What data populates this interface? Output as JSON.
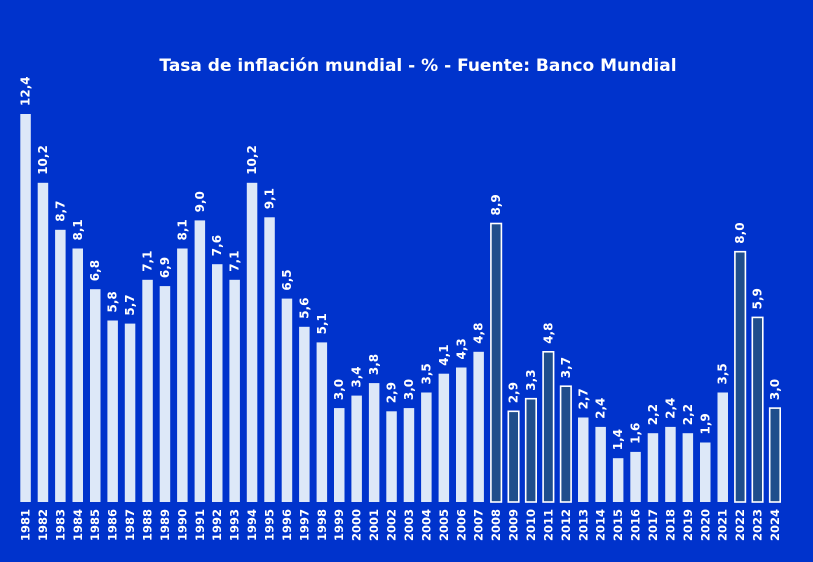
{
  "chart_data": {
    "type": "bar",
    "title": "Tasa de inflación mundial - % - Fuente: Banco Mundial",
    "xlabel": "",
    "ylabel": "",
    "ylim": [
      0,
      12.4
    ],
    "grid": false,
    "categories": [
      "1981",
      "1982",
      "1983",
      "1984",
      "1985",
      "1986",
      "1987",
      "1988",
      "1989",
      "1990",
      "1991",
      "1992",
      "1993",
      "1994",
      "1995",
      "1996",
      "1997",
      "1998",
      "1999",
      "2000",
      "2001",
      "2002",
      "2003",
      "2004",
      "2005",
      "2006",
      "2007",
      "2008",
      "2009",
      "2010",
      "2011",
      "2012",
      "2013",
      "2014",
      "2015",
      "2016",
      "2017",
      "2018",
      "2019",
      "2020",
      "2021",
      "2022",
      "2023",
      "2024"
    ],
    "values": [
      12.4,
      10.2,
      8.7,
      8.1,
      6.8,
      5.8,
      5.7,
      7.1,
      6.9,
      8.1,
      9.0,
      7.6,
      7.1,
      10.2,
      9.1,
      6.5,
      5.6,
      5.1,
      3.0,
      3.4,
      3.8,
      2.9,
      3.0,
      3.5,
      4.1,
      4.3,
      4.8,
      8.9,
      2.9,
      3.3,
      4.8,
      3.7,
      2.7,
      2.4,
      1.4,
      1.6,
      2.2,
      2.4,
      2.2,
      1.9,
      3.5,
      8.0,
      5.9,
      3.0
    ],
    "value_labels": [
      "12,4",
      "10,2",
      "8,7",
      "8,1",
      "6,8",
      "5,8",
      "5,7",
      "7,1",
      "6,9",
      "8,1",
      "9,0",
      "7,6",
      "7,1",
      "10,2",
      "9,1",
      "6,5",
      "5,6",
      "5,1",
      "3,0",
      "3,4",
      "3,8",
      "2,9",
      "3,0",
      "3,5",
      "4,1",
      "4,3",
      "4,8",
      "8,9",
      "2,9",
      "3,3",
      "4,8",
      "3,7",
      "2,7",
      "2,4",
      "1,4",
      "1,6",
      "2,2",
      "2,4",
      "2,2",
      "1,9",
      "3,5",
      "8,0",
      "5,9",
      "3,0"
    ],
    "highlighted": [
      false,
      false,
      false,
      false,
      false,
      false,
      false,
      false,
      false,
      false,
      false,
      false,
      false,
      false,
      false,
      false,
      false,
      false,
      false,
      false,
      false,
      false,
      false,
      false,
      false,
      false,
      false,
      true,
      true,
      true,
      true,
      true,
      false,
      false,
      false,
      false,
      false,
      false,
      false,
      false,
      false,
      true,
      true,
      true
    ],
    "colors": {
      "background": "#0033cc",
      "bar_fill": "#dde8f8",
      "highlight_fill": "#1f4e8c",
      "highlight_stroke": "#ffffff",
      "text": "#ffffff"
    }
  }
}
